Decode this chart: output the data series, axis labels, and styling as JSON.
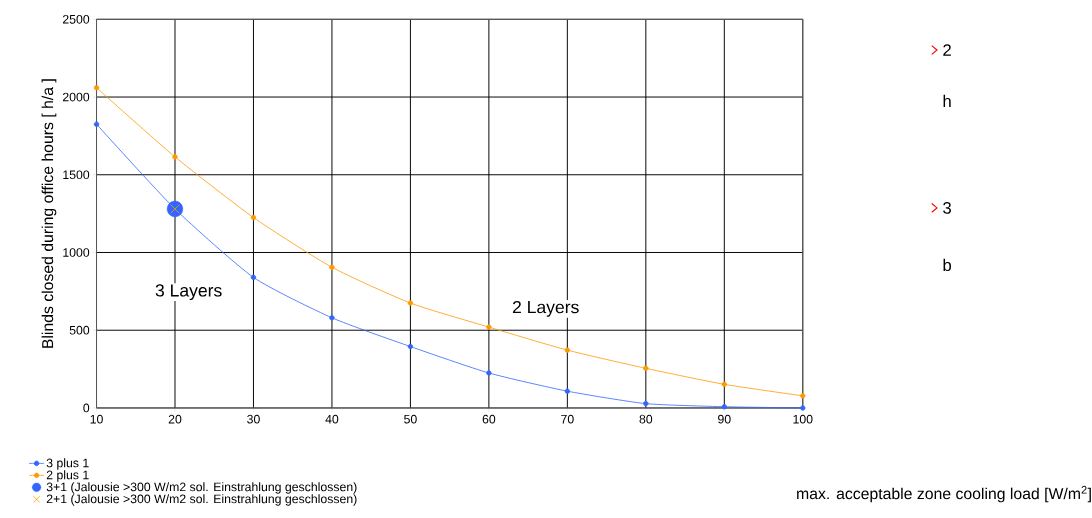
{
  "chart_data": {
    "type": "line",
    "xlabel": "max. acceptable zone cooling load [W/m$^{2}$]",
    "ylabel": "Blinds closed during office hours [ h/a ]",
    "x": [
      10,
      20,
      30,
      40,
      50,
      60,
      70,
      80,
      90,
      100
    ],
    "series": [
      {
        "name": "3 plus 1",
        "color": "#3366ff",
        "values": [
          1825,
          1280,
          840,
          580,
          395,
          225,
          108,
          28,
          8,
          0
        ]
      },
      {
        "name": "2 plus 1",
        "color": "#ff9900",
        "values": [
          2060,
          1615,
          1225,
          905,
          675,
          520,
          372,
          255,
          152,
          78
        ]
      },
      {
        "name": "3+1 (Jalousie >300 W/m2 sol. Einstrahlung geschlossen)",
        "type": "scatter",
        "marker": "circle",
        "color": "#3366ff",
        "x": [
          20
        ],
        "values": [
          1280
        ]
      },
      {
        "name": "2+1 (Jalousie >300 W/m2 sol. Einstrahlung geschlossen)",
        "type": "scatter",
        "marker": "cross",
        "color": "#ff9900",
        "x": [
          20
        ],
        "values": [
          1280
        ]
      }
    ],
    "xlim": [
      10,
      100
    ],
    "xticks": [
      10,
      20,
      30,
      40,
      50,
      60,
      70,
      80,
      90,
      100
    ],
    "ylim": [
      0,
      2500
    ],
    "yticks": [
      0,
      500,
      1000,
      1500,
      2000,
      2500
    ],
    "grid": true,
    "legend": "bottom left",
    "marker": "circle",
    "annotations": [
      "3 Layers",
      "2 Layers",
      "2",
      "h",
      "3",
      "b"
    ]
  }
}
